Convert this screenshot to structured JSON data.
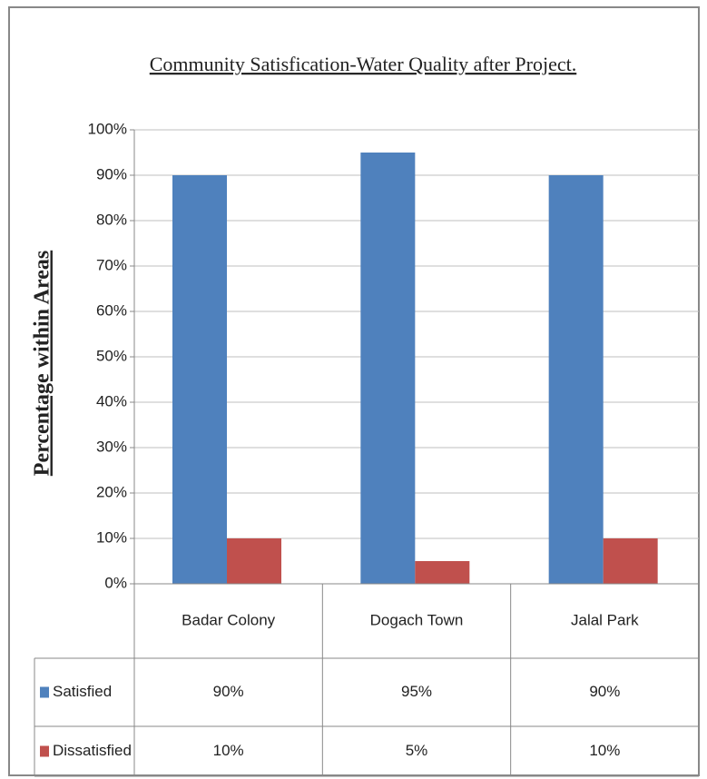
{
  "chart_data": {
    "type": "bar",
    "title": "Community Satisfication-Water Quality after Project.",
    "y_label": "Percentage within Areas",
    "categories": [
      "Badar Colony",
      "Dogach Town",
      "Jalal Park"
    ],
    "series": [
      {
        "name": "Satisfied",
        "color": "#4f81bd",
        "values": [
          90,
          95,
          90
        ],
        "value_labels": [
          "90%",
          "95%",
          "90%"
        ]
      },
      {
        "name": "Dissatisfied",
        "color": "#c0504d",
        "values": [
          10,
          5,
          10
        ],
        "value_labels": [
          "10%",
          "5%",
          "10%"
        ]
      }
    ],
    "ylim": [
      0,
      100
    ],
    "yticks": [
      {
        "value": 0,
        "label": "0%"
      },
      {
        "value": 10,
        "label": "10%"
      },
      {
        "value": 20,
        "label": "20%"
      },
      {
        "value": 30,
        "label": "30%"
      },
      {
        "value": 40,
        "label": "40%"
      },
      {
        "value": 50,
        "label": "50%"
      },
      {
        "value": 60,
        "label": "60%"
      },
      {
        "value": 70,
        "label": "70%"
      },
      {
        "value": 80,
        "label": "80%"
      },
      {
        "value": 90,
        "label": "90%"
      },
      {
        "value": 100,
        "label": "100%"
      }
    ],
    "grid": true
  }
}
